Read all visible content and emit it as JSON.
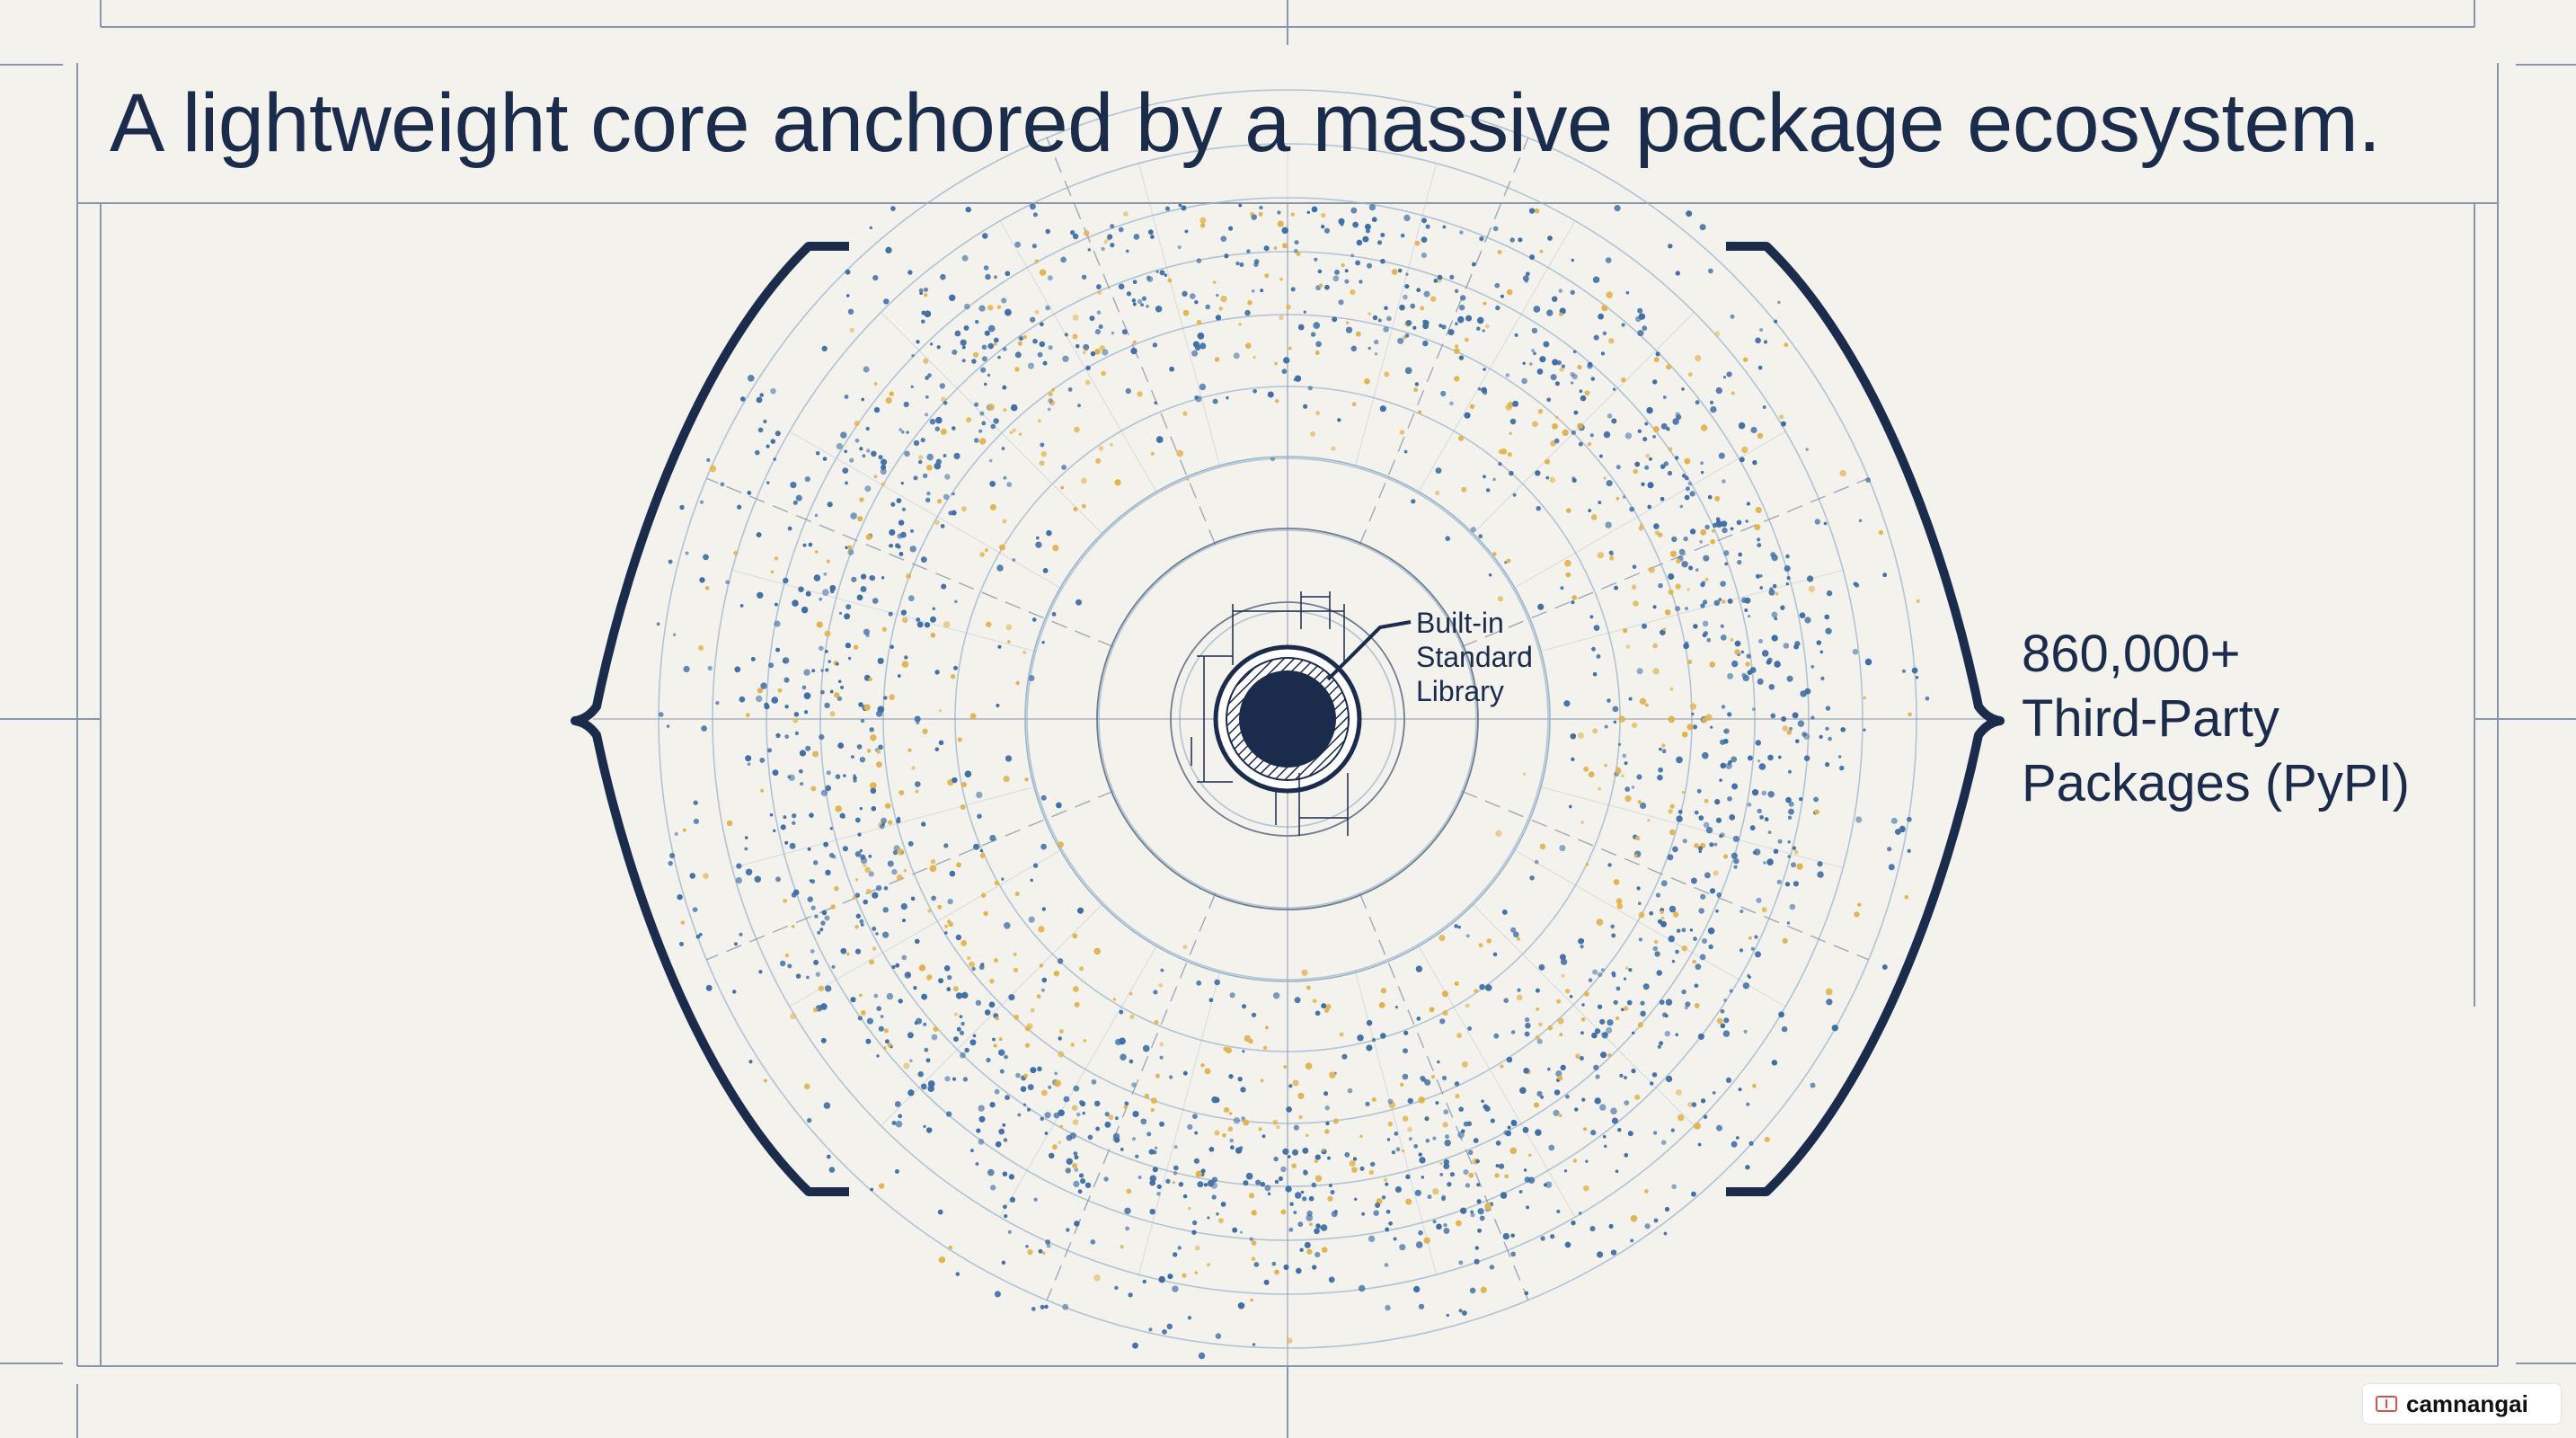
{
  "title": "A lightweight core anchored by a massive package ecosystem.",
  "core": {
    "label_lines": [
      "Built-in",
      "Standard",
      "Library"
    ]
  },
  "ecosystem": {
    "label_lines": [
      "860,000+",
      "Third-Party",
      "Packages (PyPI)"
    ]
  },
  "watermark": {
    "text": "camnangai"
  },
  "colors": {
    "background": "#f3f2ec",
    "navy": "#1b2b4b",
    "dot_blue": "#3f6fa8",
    "dot_gold": "#e2b44a",
    "guide": "#9bb4cc"
  }
}
